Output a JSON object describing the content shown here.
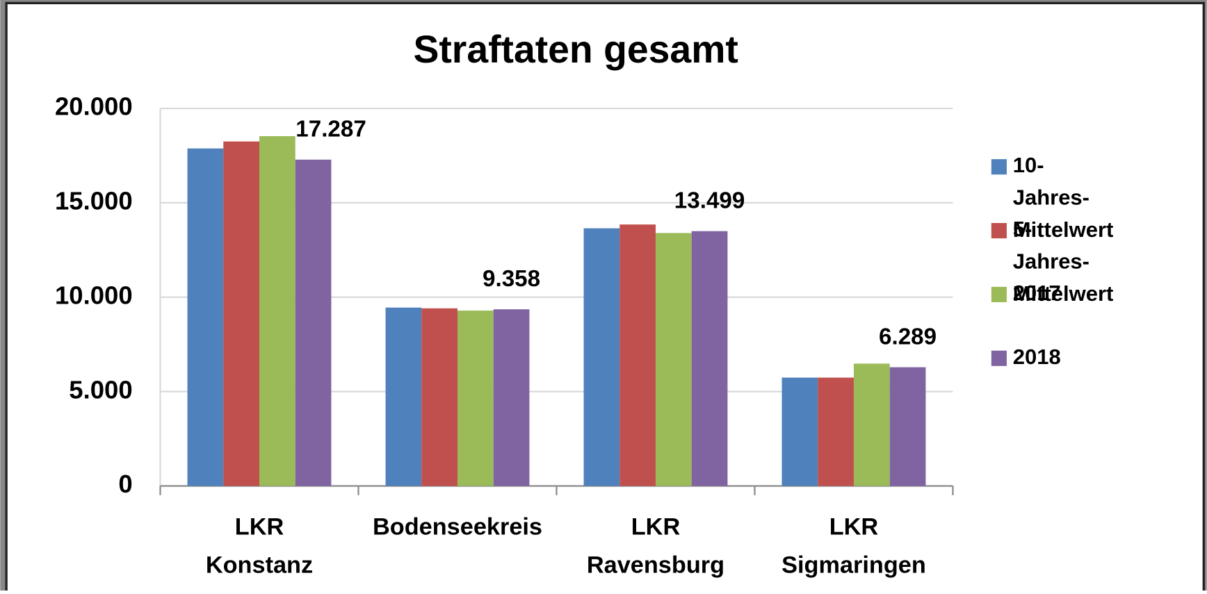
{
  "chart_data": {
    "type": "bar",
    "title": "Straftaten gesamt",
    "categories": [
      "LKR Konstanz",
      "Bodenseekreis",
      "LKR Ravensburg",
      "LKR Sigmaringen"
    ],
    "series": [
      {
        "name": "10-Jahres-Mittelwert",
        "color": "#4f81bd",
        "values": [
          17880,
          9450,
          13650,
          5740
        ]
      },
      {
        "name": "5-Jahres-Mittelwert",
        "color": "#c0504d",
        "values": [
          18250,
          9410,
          13850,
          5740
        ]
      },
      {
        "name": "2017",
        "color": "#9bbb59",
        "values": [
          18530,
          9290,
          13400,
          6480
        ]
      },
      {
        "name": "2018",
        "color": "#8064a2",
        "values": [
          17287,
          9358,
          13499,
          6289
        ],
        "value_labels": [
          "17.287",
          "9.358",
          "13.499",
          "6.289"
        ]
      }
    ],
    "ylim": [
      0,
      20000
    ],
    "yticks": [
      0,
      {
        "value": 5000,
        "label": "5.000"
      },
      {
        "value": 10000,
        "label": "10.000"
      },
      {
        "value": 15000,
        "label": "15.000"
      },
      {
        "value": 20000,
        "label": "20.000"
      }
    ],
    "grid": true,
    "legend": "right"
  }
}
